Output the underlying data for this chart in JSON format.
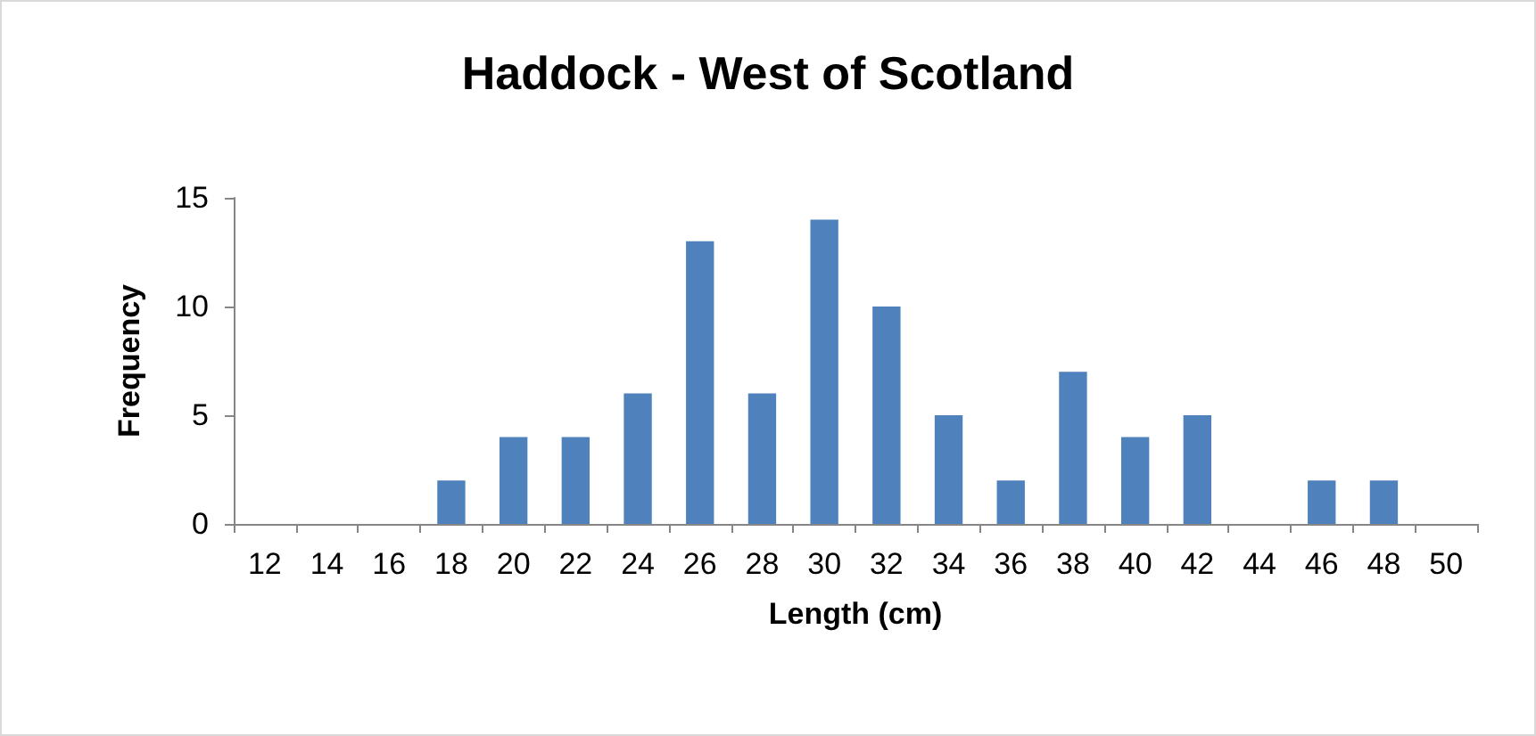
{
  "chart_data": {
    "type": "bar",
    "title": "Haddock - West of Scotland",
    "xlabel": "Length (cm)",
    "ylabel": "Frequency",
    "categories": [
      "12",
      "14",
      "16",
      "18",
      "20",
      "22",
      "24",
      "26",
      "28",
      "30",
      "32",
      "34",
      "36",
      "38",
      "40",
      "42",
      "44",
      "46",
      "48",
      "50"
    ],
    "values": [
      0,
      0,
      0,
      2,
      4,
      4,
      6,
      13,
      6,
      14,
      10,
      5,
      2,
      7,
      4,
      5,
      0,
      2,
      2,
      0
    ],
    "color": "#4f81bd",
    "ylim": [
      0,
      15
    ],
    "yticks": [
      0,
      5,
      10,
      15
    ]
  }
}
